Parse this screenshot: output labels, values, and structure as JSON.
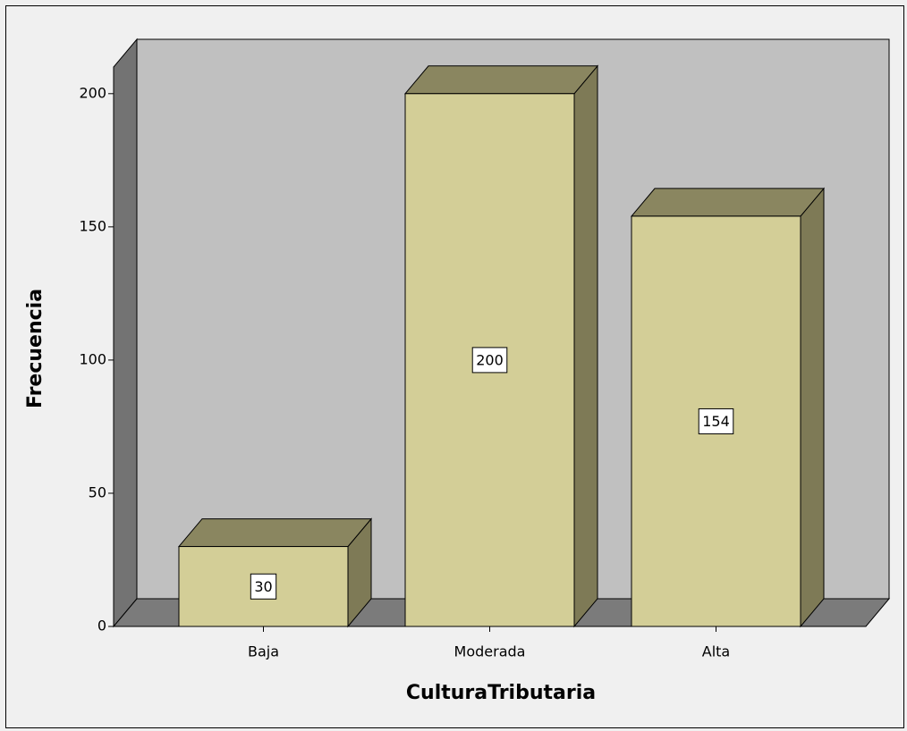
{
  "chart_data": {
    "type": "bar3d",
    "categories": [
      "Baja",
      "Moderada",
      "Alta"
    ],
    "values": [
      30,
      200,
      154
    ],
    "color": "#d3ce97",
    "xlabel": "CulturaTributaria",
    "ylabel": "Frecuencia",
    "ylim": [
      0,
      210
    ],
    "yticks": [
      0,
      50,
      100,
      150,
      200
    ]
  }
}
